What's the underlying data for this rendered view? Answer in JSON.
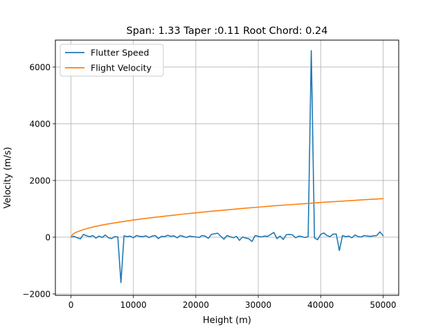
{
  "chart_data": {
    "type": "line",
    "title": "Span: 1.33 Taper :0.11 Root Chord: 0.24",
    "xlabel": "Height (m)",
    "ylabel": "Velocity (m/s)",
    "xlim": [
      -2500,
      52500
    ],
    "ylim": [
      -2050,
      6950
    ],
    "xticks": [
      0,
      10000,
      20000,
      30000,
      40000,
      50000
    ],
    "xtick_labels": [
      "0",
      "10000",
      "20000",
      "30000",
      "40000",
      "50000"
    ],
    "yticks": [
      -2000,
      0,
      2000,
      4000,
      6000
    ],
    "ytick_labels": [
      "−2000",
      "0",
      "2000",
      "4000",
      "6000"
    ],
    "grid": true,
    "legend_position": "top-left",
    "series": [
      {
        "name": "Flutter Speed",
        "color": "#1f77b4",
        "x": [
          0,
          500,
          1000,
          1500,
          2000,
          2500,
          3000,
          3500,
          4000,
          4500,
          5000,
          5500,
          6000,
          6500,
          7000,
          7500,
          8000,
          8500,
          9000,
          9500,
          10000,
          10500,
          11000,
          11500,
          12000,
          12500,
          13000,
          13500,
          14000,
          14500,
          15000,
          15500,
          16000,
          16500,
          17000,
          17500,
          18000,
          18500,
          19000,
          19500,
          20000,
          20500,
          21000,
          21500,
          22000,
          22500,
          23000,
          23500,
          24000,
          24500,
          25000,
          25500,
          26000,
          26500,
          27000,
          27500,
          28000,
          28500,
          29000,
          29500,
          30000,
          30500,
          31000,
          31500,
          32000,
          32500,
          33000,
          33500,
          34000,
          34500,
          35000,
          35500,
          36000,
          36500,
          37000,
          37500,
          38000,
          38500,
          39000,
          39500,
          40000,
          40500,
          41000,
          41500,
          42000,
          42500,
          43000,
          43500,
          44000,
          44500,
          45000,
          45500,
          46000,
          46500,
          47000,
          47500,
          48000,
          48500,
          49000,
          49500,
          50000
        ],
        "values": [
          0,
          30,
          -20,
          -60,
          100,
          50,
          20,
          60,
          -30,
          40,
          -10,
          80,
          -20,
          -50,
          20,
          10,
          -1600,
          50,
          20,
          40,
          -20,
          60,
          30,
          20,
          50,
          -10,
          40,
          60,
          -50,
          30,
          20,
          70,
          30,
          50,
          -20,
          60,
          30,
          -10,
          40,
          20,
          10,
          -10,
          60,
          40,
          -40,
          100,
          120,
          140,
          30,
          -70,
          60,
          20,
          -20,
          30,
          -110,
          10,
          -30,
          -60,
          -150,
          60,
          30,
          10,
          40,
          30,
          100,
          170,
          -50,
          40,
          -80,
          90,
          100,
          80,
          -20,
          40,
          20,
          -10,
          20,
          6580,
          -20,
          -90,
          100,
          150,
          60,
          20,
          110,
          110,
          -470,
          60,
          20,
          40,
          -20,
          80,
          20,
          10,
          60,
          40,
          30,
          50,
          60,
          190,
          50
        ]
      },
      {
        "name": "Flight Velocity",
        "color": "#ff7f0e",
        "x": [
          0,
          250,
          500,
          1000,
          2000,
          3000,
          4000,
          5000,
          6000,
          8000,
          10000,
          12000,
          15000,
          18000,
          20000,
          22500,
          25000,
          27500,
          30000,
          32500,
          35000,
          37500,
          40000,
          42500,
          45000,
          47500,
          50000
        ],
        "values": [
          0,
          95,
          140,
          190,
          270,
          330,
          385,
          430,
          470,
          540,
          605,
          665,
          740,
          815,
          860,
          915,
          965,
          1015,
          1060,
          1105,
          1145,
          1185,
          1225,
          1260,
          1295,
          1330,
          1360
        ]
      }
    ]
  }
}
